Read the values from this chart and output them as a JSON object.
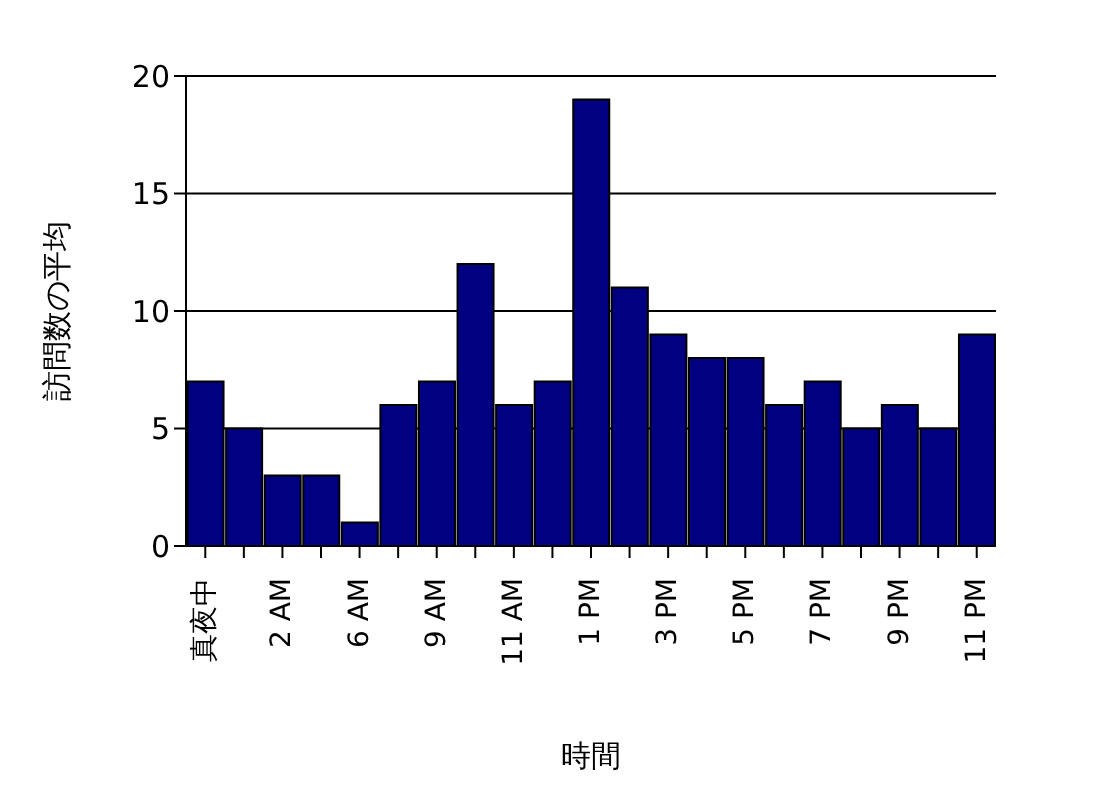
{
  "chart_data": {
    "type": "bar",
    "xlabel": "時間",
    "ylabel": "訪問数の平均",
    "categories": [
      "真夜中",
      null,
      "2 AM",
      null,
      "6 AM",
      null,
      "9 AM",
      null,
      "11 AM",
      null,
      "1 PM",
      null,
      "3 PM",
      null,
      "5 PM",
      null,
      "7 PM",
      null,
      "9 PM",
      null,
      "11 PM"
    ],
    "values": [
      7,
      5,
      3,
      3,
      1,
      6,
      7,
      12,
      6,
      7,
      19,
      11,
      9,
      8,
      8,
      6,
      7,
      5,
      6,
      5,
      9
    ],
    "color": "#000080",
    "ylim": [
      0,
      20
    ],
    "yticks": [
      0,
      5,
      10,
      15,
      20
    ],
    "grid": "y",
    "legend": false
  }
}
